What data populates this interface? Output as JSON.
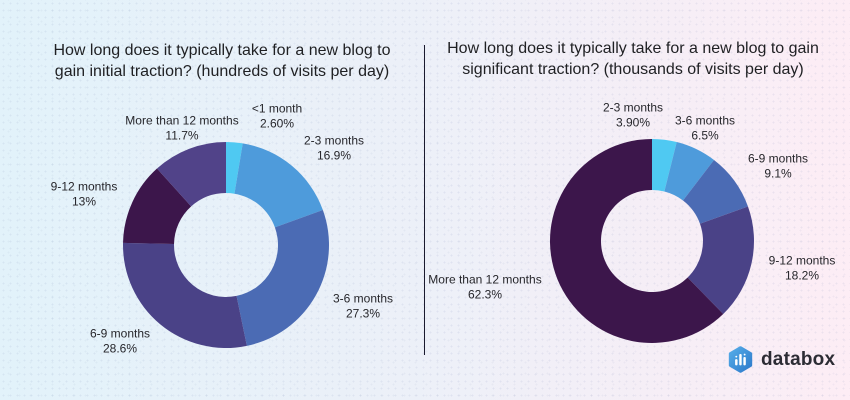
{
  "page": {
    "kind": "databox-survey-infographic"
  },
  "chart_data": [
    {
      "type": "pie",
      "subtype": "donut",
      "title": "How long does it typically take for a new blog to gain initial traction? (hundreds of visits per day)",
      "categories": [
        "<1 month",
        "2-3 months",
        "3-6 months",
        "6-9 months",
        "9-12 months",
        "More than 12 months"
      ],
      "values": [
        2.6,
        16.9,
        27.3,
        28.6,
        13,
        11.7
      ],
      "value_labels": [
        "2.60%",
        "16.9%",
        "27.3%",
        "28.6%",
        "13%",
        "11.7%"
      ],
      "colors": [
        "#4FC9F2",
        "#4E9BDB",
        "#4B6BB4",
        "#4A4287",
        "#3C164B",
        "#514389"
      ],
      "start_angle_deg": 0,
      "direction": "clockwise",
      "hole_ratio": 0.5,
      "legend": "none",
      "labels_outside": true
    },
    {
      "type": "pie",
      "subtype": "donut",
      "title": "How long does it typically take for a new blog to gain significant traction? (thousands of visits per day)",
      "categories": [
        "2-3 months",
        "3-6 months",
        "6-9 months",
        "9-12 months",
        "More than 12 months"
      ],
      "values": [
        3.9,
        6.5,
        9.1,
        18.2,
        62.3
      ],
      "value_labels": [
        "3.90%",
        "6.5%",
        "9.1%",
        "18.2%",
        "62.3%"
      ],
      "colors": [
        "#4FC9F2",
        "#4E9BDB",
        "#4B6BB4",
        "#4A4287",
        "#3C164B"
      ],
      "start_angle_deg": 0,
      "direction": "clockwise",
      "hole_ratio": 0.5,
      "legend": "none",
      "labels_outside": true
    }
  ],
  "logo": {
    "text": "databox",
    "icon": "databox-hexagon-bar-chart-icon",
    "icon_color_top": "#55ACE8",
    "icon_color_bottom": "#2E7BCB"
  },
  "style": {
    "background_left": "#E2F2FA",
    "background_right": "#FDEDF5",
    "divider_color": "#1A1A2E",
    "text_color": "#26262B"
  }
}
